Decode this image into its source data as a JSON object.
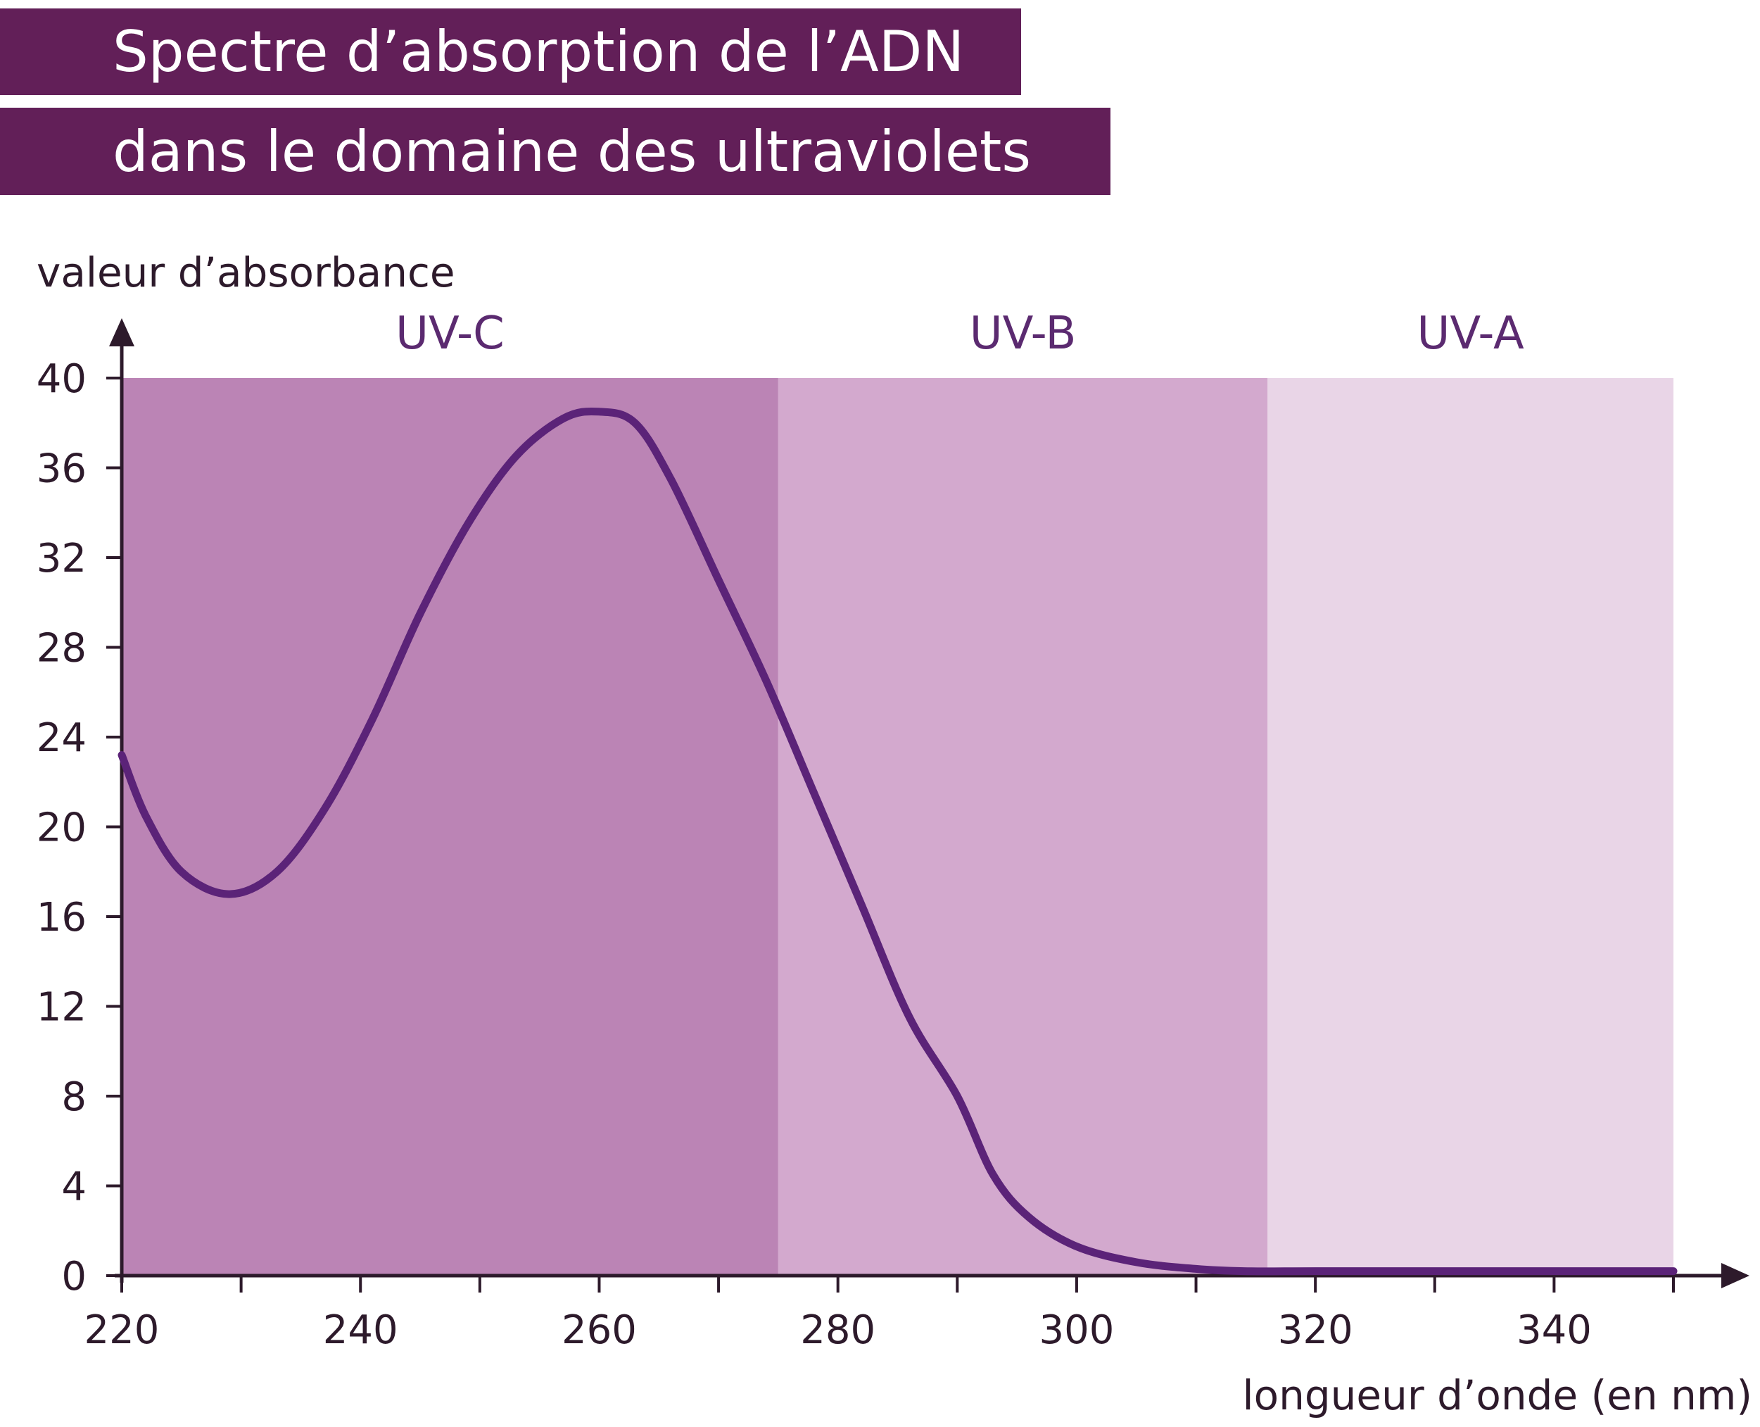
{
  "header": {
    "title_line1": "Spectre d’absorption de l’ADN",
    "title_line2": "dans le domaine des ultraviolets",
    "bar_color": "#621f58"
  },
  "chart_data": {
    "type": "line",
    "title": "Spectre d’absorption de l’ADN dans le domaine des ultraviolets",
    "ylabel": "valeur d’absorbance",
    "xlabel": "longueur d’onde (en nm)",
    "xlim": [
      220,
      350
    ],
    "ylim": [
      0,
      40
    ],
    "x_ticks": [
      220,
      240,
      260,
      280,
      300,
      320,
      340
    ],
    "y_ticks": [
      0,
      4,
      8,
      12,
      16,
      20,
      24,
      28,
      32,
      36,
      40
    ],
    "grid": false,
    "line_color": "#5b2378",
    "bands": [
      {
        "label": "UV-C",
        "start": 220,
        "end": 275,
        "color": "#bb84b5"
      },
      {
        "label": "UV-B",
        "start": 275,
        "end": 316,
        "color": "#d3a9ce"
      },
      {
        "label": "UV-A",
        "start": 316,
        "end": 350,
        "color": "#e9d5e7"
      }
    ],
    "series": [
      {
        "x": [
          220,
          222,
          225,
          229,
          233,
          237,
          241,
          245,
          249,
          253,
          257,
          260,
          263,
          266,
          270,
          274,
          278,
          282,
          286,
          290,
          293,
          296,
          300,
          305,
          310,
          314,
          320,
          330,
          340,
          350
        ],
        "y": [
          23.2,
          20.5,
          18.0,
          17.0,
          18.0,
          20.8,
          24.8,
          29.5,
          33.5,
          36.5,
          38.2,
          38.5,
          38.0,
          35.5,
          31.0,
          26.5,
          21.5,
          16.5,
          11.5,
          8.0,
          4.5,
          2.6,
          1.3,
          0.6,
          0.3,
          0.2,
          0.2,
          0.2,
          0.2,
          0.2
        ]
      }
    ]
  }
}
